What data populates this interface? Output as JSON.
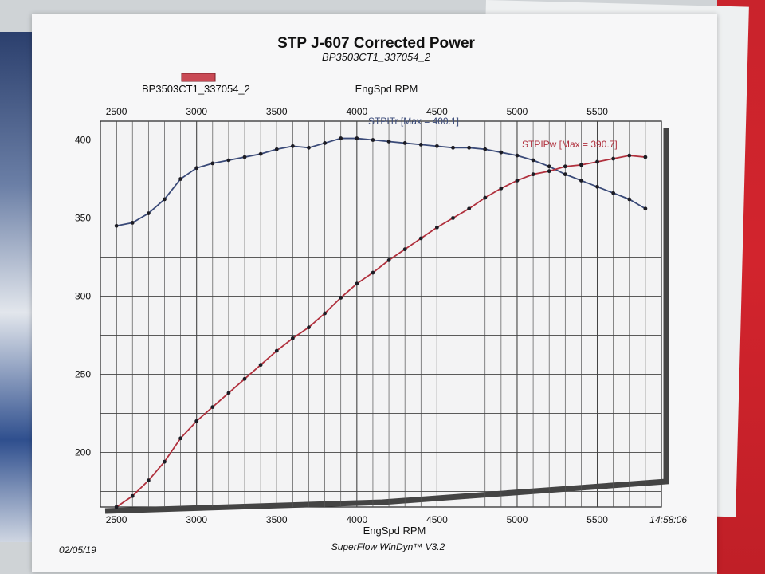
{
  "chart_data": {
    "type": "line",
    "title": "STP J-607 Corrected Power",
    "subtitle": "BP3503CT1_337054_2",
    "legend_entry": "BP3503CT1_337054_2",
    "xlabel": "EngSpd RPM",
    "xlim": [
      2400,
      5900
    ],
    "ylim": [
      165,
      412
    ],
    "x_ticks": [
      2500,
      3000,
      3500,
      4000,
      4500,
      5000,
      5500
    ],
    "y_ticks": [
      200,
      250,
      300,
      350,
      400
    ],
    "grid": true,
    "x": [
      2500,
      2600,
      2700,
      2800,
      2900,
      3000,
      3100,
      3200,
      3300,
      3400,
      3500,
      3600,
      3700,
      3800,
      3900,
      4000,
      4100,
      4200,
      4300,
      4400,
      4500,
      4600,
      4700,
      4800,
      4900,
      5000,
      5100,
      5200,
      5300,
      5400,
      5500,
      5600,
      5700,
      5800
    ],
    "series": [
      {
        "name": "STPITr",
        "max_label": "STPITr [Max = 400.1]",
        "color": "#3a4a78",
        "values": [
          345,
          347,
          353,
          362,
          375,
          382,
          385,
          387,
          389,
          391,
          394,
          396,
          395,
          398,
          401,
          401,
          400,
          399,
          398,
          397,
          396,
          395,
          395,
          394,
          392,
          390,
          387,
          383,
          378,
          374,
          370,
          366,
          362,
          356
        ]
      },
      {
        "name": "STPIPw",
        "max_label": "STPIPw [Max = 390.7]",
        "color": "#b0303d",
        "values": [
          165,
          172,
          182,
          194,
          209,
          220,
          229,
          238,
          247,
          256,
          265,
          273,
          280,
          289,
          299,
          308,
          315,
          323,
          330,
          337,
          344,
          350,
          356,
          363,
          369,
          374,
          378,
          380,
          383,
          384,
          386,
          388,
          390,
          389
        ]
      }
    ]
  },
  "footer": {
    "date": "02/05/19",
    "software": "SuperFlow WinDyn™ V3.2",
    "time": "14:58:06"
  }
}
